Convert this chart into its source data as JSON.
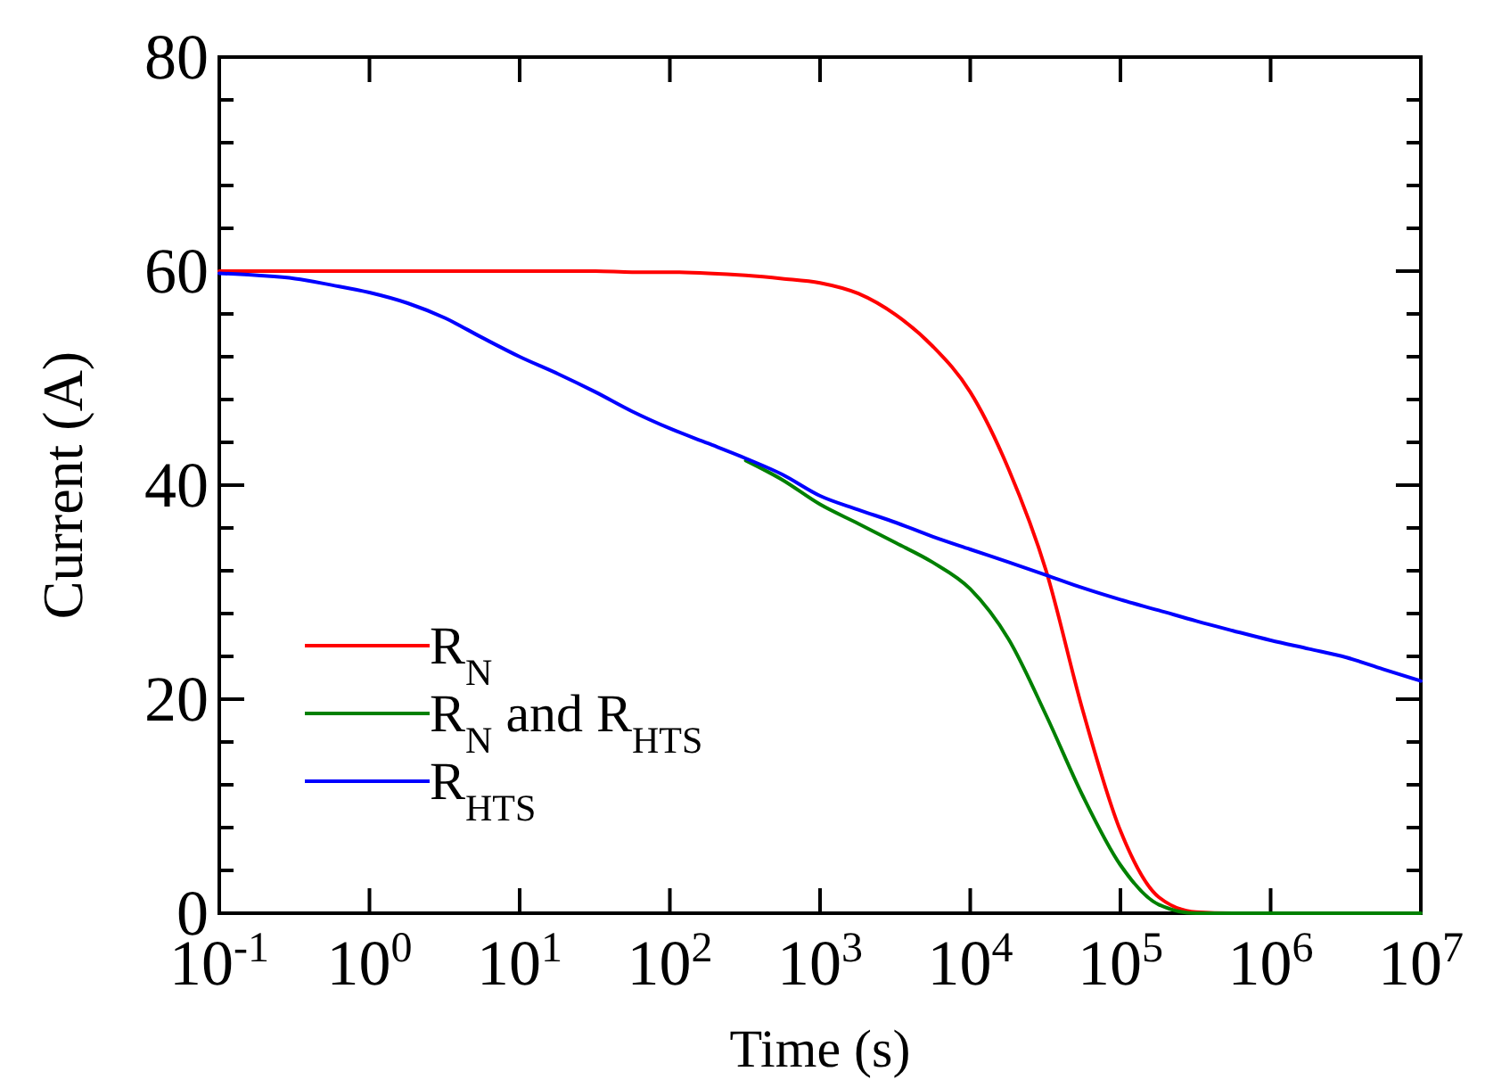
{
  "chart_data": {
    "type": "line",
    "xlabel": "Time (s)",
    "ylabel": "Current (A)",
    "log": "x",
    "legend": "bottom left",
    "line_style": "solid",
    "marker": "none",
    "xlim": [
      0.1,
      10000000
    ],
    "ylim": [
      0,
      80
    ],
    "xticks": [
      {
        "value": 0.1,
        "label": "10$^{-1}$"
      },
      {
        "value": 1,
        "label": "10$^{0}$"
      },
      {
        "value": 10,
        "label": "10$^{1}$"
      },
      {
        "value": 100,
        "label": "10$^{2}$"
      },
      {
        "value": 1000,
        "label": "10$^{3}$"
      },
      {
        "value": 10000,
        "label": "10$^{4}$"
      },
      {
        "value": 100000,
        "label": "10$^{5}$"
      },
      {
        "value": 1000000,
        "label": "10$^{6}$"
      },
      {
        "value": 10000000,
        "label": "10$^{7}$"
      }
    ],
    "yticks": [
      0,
      {
        "value": 4,
        "label": null
      },
      {
        "value": 8,
        "label": null
      },
      {
        "value": 12,
        "label": null
      },
      {
        "value": 16,
        "label": null
      },
      20,
      {
        "value": 24,
        "label": null
      },
      {
        "value": 28,
        "label": null
      },
      {
        "value": 32,
        "label": null
      },
      {
        "value": 36,
        "label": null
      },
      40,
      {
        "value": 44,
        "label": null
      },
      {
        "value": 48,
        "label": null
      },
      {
        "value": 52,
        "label": null
      },
      {
        "value": 56,
        "label": null
      },
      60,
      {
        "value": 64,
        "label": null
      },
      {
        "value": 68,
        "label": null
      },
      {
        "value": 72,
        "label": null
      },
      {
        "value": 76,
        "label": null
      },
      80
    ],
    "x": [
      0.1,
      0.18,
      0.32,
      0.56,
      1,
      1.8,
      3.2,
      5.6,
      10,
      18,
      32,
      56,
      100,
      180,
      320,
      560,
      1000,
      1800,
      3200,
      5600,
      10000,
      18000,
      32000,
      56000,
      100000,
      180000,
      320000,
      560000,
      1000000,
      1800000,
      3200000,
      5600000,
      10000000
    ],
    "series": [
      {
        "name": "R$_{N}$",
        "color": "#ff0000",
        "values": [
          60,
          60,
          60,
          60,
          60,
          60,
          60,
          60,
          60,
          60,
          60,
          59.9,
          59.9,
          59.8,
          59.6,
          59.3,
          58.9,
          57.9,
          55.9,
          53.0,
          48.7,
          41.5,
          32.0,
          19.0,
          7.7,
          1.5,
          0.1,
          0,
          0,
          null,
          null,
          null,
          null
        ]
      },
      {
        "name": "R$_{N}$ and R$_{HTS}$",
        "color": "#008000",
        "values": [
          null,
          null,
          null,
          null,
          null,
          null,
          null,
          null,
          null,
          null,
          null,
          null,
          null,
          null,
          42.3,
          40.5,
          38.2,
          36.4,
          34.6,
          32.8,
          30.3,
          25.6,
          18.5,
          11.0,
          4.5,
          0.8,
          0,
          0,
          0,
          0,
          0,
          0,
          0
        ]
      },
      {
        "name": "R$_{HTS}$",
        "color": "#0000ff",
        "values": [
          59.8,
          59.6,
          59.3,
          58.7,
          58.0,
          57.0,
          55.6,
          53.8,
          52.0,
          50.4,
          48.7,
          46.9,
          45.3,
          43.9,
          42.5,
          41.0,
          39.0,
          37.7,
          36.5,
          35.2,
          34.0,
          32.8,
          31.6,
          30.4,
          29.3,
          28.3,
          27.3,
          26.4,
          25.5,
          24.7,
          23.9,
          22.8,
          21.7
        ]
      }
    ]
  }
}
